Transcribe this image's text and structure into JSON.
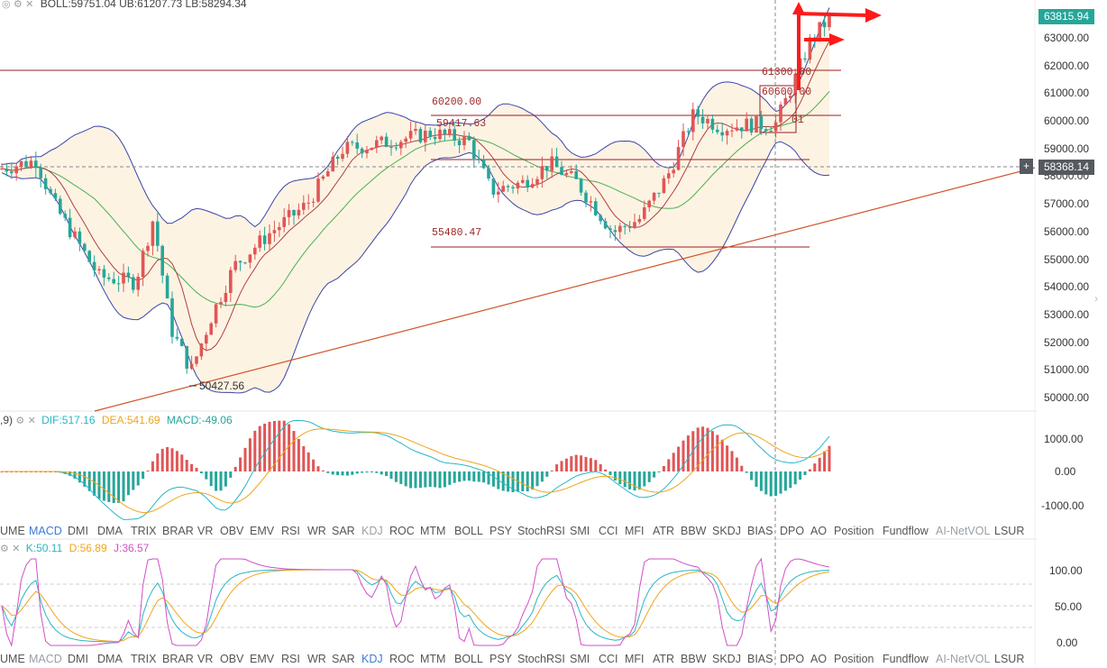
{
  "header": {
    "boll_text": "BOLL:59751.04  UB:61207.73  LB:58294.34"
  },
  "price_axis": {
    "labels": [
      "63000.00",
      "62000.00",
      "61000.00",
      "60000.00",
      "59000.00",
      "58000.00",
      "57000.00",
      "56000.00",
      "55000.00",
      "54000.00",
      "53000.00",
      "52000.00",
      "51000.00",
      "50000.00"
    ],
    "last_price": "63815.94",
    "cursor_price": "58368.14",
    "last_price_color": "#26a69a",
    "cursor_tag_color": "#555a60"
  },
  "annotations": {
    "level_60200": "60200.00",
    "level_59417": "59417.63",
    "level_55480": "55480.47",
    "level_61300": "61300.00",
    "level_60600": "60600.00",
    "level_right_small": "01",
    "low_label": "50427.56"
  },
  "macd": {
    "prefix": ",9)",
    "dif": "DIF:517.16",
    "dea": "DEA:541.69",
    "macd": "MACD:-49.06",
    "axis": [
      "1000.00",
      "0.00",
      "-1000.00"
    ],
    "dif_color": "#29b6c4",
    "dea_color": "#f0a51a",
    "up_color": "#e05656",
    "down_color": "#26a69a"
  },
  "kdj": {
    "k": "K:50.11",
    "d": "D:56.89",
    "j": "J:36.57",
    "axis": [
      "100.00",
      "50.00",
      "0.00"
    ],
    "k_color": "#29b6c4",
    "d_color": "#f0a51a",
    "j_color": "#d050c8"
  },
  "tabs_macd": [
    "UME",
    "MACD",
    "DMI",
    "DMA",
    "TRIX",
    "BRAR",
    "VR",
    "OBV",
    "EMV",
    "RSI",
    "WR",
    "SAR",
    "KDJ",
    "ROC",
    "MTM",
    "BOLL",
    "PSY",
    "StochRSI",
    "SMI",
    "CCI",
    "MFI",
    "ATR",
    "BBW",
    "SKDJ",
    "BIAS",
    "DPO",
    "AO",
    "Position",
    "Fundflow",
    "AI-NetVOL",
    "LSUR"
  ],
  "tabs_kdj": [
    "UME",
    "MACD",
    "DMI",
    "DMA",
    "TRIX",
    "BRAR",
    "VR",
    "OBV",
    "EMV",
    "RSI",
    "WR",
    "SAR",
    "KDJ",
    "ROC",
    "MTM",
    "BOLL",
    "PSY",
    "StochRSI",
    "SMI",
    "CCI",
    "MFI",
    "ATR",
    "BBW",
    "SKDJ",
    "BIAS",
    "DPO",
    "AO",
    "Position",
    "Fundflow",
    "AI-NetVOL",
    "LSUR"
  ],
  "active_tab_macd": "MACD",
  "active_tab_kdj": "KDJ",
  "colors": {
    "up": "#e05656",
    "down": "#26a69a",
    "band": "#3a45a8",
    "band_fill": "#fdf3e3",
    "ma_green": "#4caf50",
    "ma_red": "#b04040",
    "trend": "#d0542a",
    "arrow": "#ff1a1a",
    "hline": "#9b1c1c"
  }
}
